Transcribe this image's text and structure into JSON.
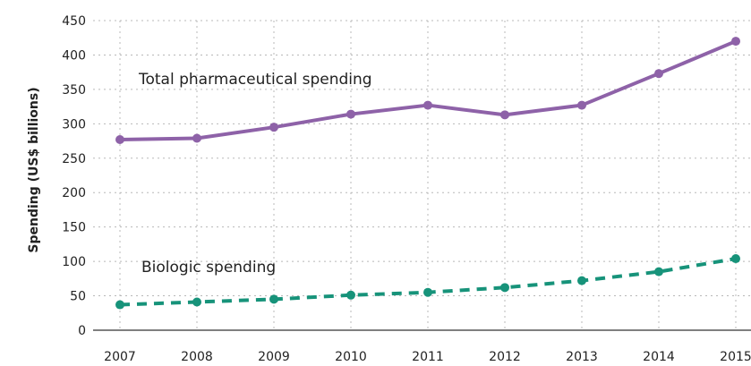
{
  "chart_data": {
    "type": "line",
    "title": "",
    "xlabel": "",
    "ylabel": "Spending (US$ billions)",
    "categories": [
      "2007",
      "2008",
      "2009",
      "2010",
      "2011",
      "2012",
      "2013",
      "2014",
      "2015"
    ],
    "ylim": [
      0,
      450
    ],
    "yticks": [
      "0",
      "50",
      "100",
      "150",
      "200",
      "250",
      "300",
      "350",
      "400",
      "450"
    ],
    "grid": true,
    "legend": "inline labels",
    "series": [
      {
        "name": "Total pharmaceutical spending",
        "values": [
          277,
          279,
          295,
          314,
          327,
          313,
          327,
          373,
          420
        ],
        "color": "#8e62a8",
        "line_style": "solid"
      },
      {
        "name": "Biologic spending",
        "values": [
          37,
          41,
          45,
          51,
          55,
          62,
          72,
          85,
          104
        ],
        "color": "#17937a",
        "line_style": "dashed"
      }
    ]
  }
}
